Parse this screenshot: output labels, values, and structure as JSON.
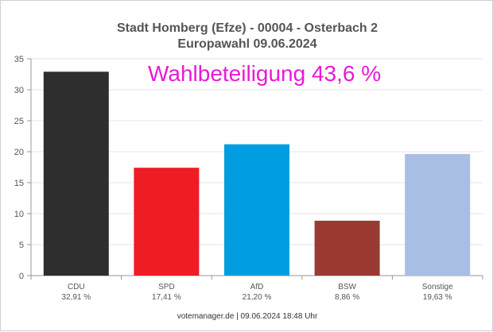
{
  "title_line1": "Stadt Homberg (Efze) - 00004 - Osterbach 2",
  "title_line2": "Europawahl 09.06.2024",
  "turnout_text": "Wahlbeteiligung 43,6 %",
  "footer_text": "votemanager.de | 09.06.2024 18:48 Uhr",
  "colors": {
    "grid": "#e6e6e6",
    "axis": "#999999",
    "tick_text": "#555555",
    "turnout": "#e81ad6"
  },
  "chart_data": {
    "type": "bar",
    "categories": [
      "CDU",
      "SPD",
      "AfD",
      "BSW",
      "Sonstige"
    ],
    "values": [
      32.91,
      17.41,
      21.2,
      8.86,
      19.63
    ],
    "value_labels": [
      "32,91 %",
      "17,41 %",
      "21,20 %",
      "8,86 %",
      "19,63 %"
    ],
    "colors": [
      "#2e2e2e",
      "#ee1c25",
      "#009ee0",
      "#9a3a33",
      "#a8bee3"
    ],
    "yticks": [
      0,
      5,
      10,
      15,
      20,
      25,
      30,
      35
    ],
    "ylim": [
      0,
      35
    ],
    "grid": true,
    "title": "Stadt Homberg (Efze) - 00004 - Osterbach 2",
    "subtitle": "Europawahl 09.06.2024",
    "xlabel": "",
    "ylabel": ""
  }
}
